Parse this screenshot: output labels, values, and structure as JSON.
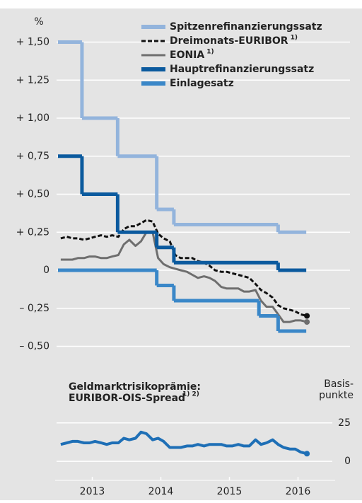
{
  "chart_data": [
    {
      "type": "line",
      "ylabel": "%",
      "xlim": [
        2013,
        2017
      ],
      "ylim": [
        -0.6,
        1.6
      ],
      "grid": true,
      "legend": "upper right",
      "yticks": [
        {
          "value": 1.5,
          "label": "+ 1,50"
        },
        {
          "value": 1.25,
          "label": "+ 1,25"
        },
        {
          "value": 1.0,
          "label": "+ 1,00"
        },
        {
          "value": 0.75,
          "label": "+ 0,75"
        },
        {
          "value": 0.5,
          "label": "+ 0,50"
        },
        {
          "value": 0.25,
          "label": "+ 0,25"
        },
        {
          "value": 0,
          "label": "0"
        },
        {
          "value": -0.25,
          "label": "– 0,25"
        },
        {
          "value": -0.5,
          "label": "– 0,50"
        }
      ],
      "series": [
        {
          "name": "Spitzenrefinanzierungssatz",
          "color": "#93b4dc",
          "step": true,
          "x": [
            2013.0,
            2013.35,
            2013.87,
            2014.44,
            2014.69,
            2016.21,
            2016.62
          ],
          "values": [
            1.5,
            1.0,
            0.75,
            0.4,
            0.3,
            0.25,
            0.25
          ]
        },
        {
          "name": "Dreimonats-EURIBOR",
          "note": "1)",
          "color": "#111111",
          "dashed": true,
          "end_marker": true,
          "x": [
            2013.04,
            2013.13,
            2013.21,
            2013.29,
            2013.38,
            2013.46,
            2013.54,
            2013.63,
            2013.71,
            2013.79,
            2013.88,
            2013.96,
            2014.04,
            2014.13,
            2014.21,
            2014.29,
            2014.38,
            2014.46,
            2014.54,
            2014.63,
            2014.71,
            2014.79,
            2014.88,
            2014.96,
            2015.04,
            2015.13,
            2015.21,
            2015.29,
            2015.38,
            2015.46,
            2015.54,
            2015.63,
            2015.71,
            2015.79,
            2015.88,
            2015.96,
            2016.04,
            2016.13,
            2016.21,
            2016.29,
            2016.38,
            2016.46,
            2016.54,
            2016.63
          ],
          "values": [
            0.21,
            0.22,
            0.21,
            0.21,
            0.2,
            0.21,
            0.22,
            0.23,
            0.22,
            0.23,
            0.22,
            0.27,
            0.29,
            0.29,
            0.31,
            0.33,
            0.32,
            0.24,
            0.21,
            0.19,
            0.1,
            0.08,
            0.08,
            0.08,
            0.06,
            0.05,
            0.03,
            0.0,
            -0.01,
            -0.01,
            -0.02,
            -0.03,
            -0.04,
            -0.05,
            -0.09,
            -0.13,
            -0.15,
            -0.18,
            -0.23,
            -0.25,
            -0.26,
            -0.27,
            -0.29,
            -0.3
          ]
        },
        {
          "name": "EONIA",
          "note": "1)",
          "color": "#6e6e6e",
          "end_marker": true,
          "x": [
            2013.04,
            2013.13,
            2013.21,
            2013.29,
            2013.38,
            2013.46,
            2013.54,
            2013.63,
            2013.71,
            2013.79,
            2013.88,
            2013.96,
            2014.04,
            2014.13,
            2014.21,
            2014.29,
            2014.38,
            2014.46,
            2014.54,
            2014.63,
            2014.71,
            2014.79,
            2014.88,
            2014.96,
            2015.04,
            2015.13,
            2015.21,
            2015.29,
            2015.38,
            2015.46,
            2015.54,
            2015.63,
            2015.71,
            2015.79,
            2015.88,
            2015.96,
            2016.04,
            2016.13,
            2016.21,
            2016.29,
            2016.38,
            2016.46,
            2016.54,
            2016.63
          ],
          "values": [
            0.07,
            0.07,
            0.07,
            0.08,
            0.08,
            0.09,
            0.09,
            0.08,
            0.08,
            0.09,
            0.1,
            0.17,
            0.2,
            0.16,
            0.19,
            0.25,
            0.25,
            0.08,
            0.04,
            0.02,
            0.01,
            0.0,
            -0.01,
            -0.03,
            -0.05,
            -0.04,
            -0.05,
            -0.07,
            -0.11,
            -0.12,
            -0.12,
            -0.12,
            -0.14,
            -0.14,
            -0.13,
            -0.2,
            -0.24,
            -0.24,
            -0.29,
            -0.34,
            -0.34,
            -0.33,
            -0.33,
            -0.34
          ]
        },
        {
          "name": "Hauptrefinanzierungssatz",
          "color": "#0b5a9e",
          "step": true,
          "x": [
            2013.0,
            2013.35,
            2013.87,
            2014.44,
            2014.69,
            2016.21,
            2016.62
          ],
          "values": [
            0.75,
            0.5,
            0.25,
            0.15,
            0.05,
            0,
            0
          ]
        },
        {
          "name": "Einlagesatz",
          "color": "#3a87c8",
          "step": true,
          "x": [
            2013.0,
            2014.44,
            2014.69,
            2015.93,
            2016.21,
            2016.62
          ],
          "values": [
            0,
            -0.1,
            -0.2,
            -0.3,
            -0.4,
            -0.4
          ]
        }
      ]
    },
    {
      "type": "line",
      "title": [
        "Geldmarktrisikoprämie:",
        "EURIBOR-OIS-Spread"
      ],
      "title_note": "1) 2)",
      "ylabel": [
        "Basis-",
        "punkte"
      ],
      "xlim": [
        2013,
        2017
      ],
      "ylim": [
        -5,
        35
      ],
      "yticks": [
        0,
        25
      ],
      "grid": true,
      "xticks": [
        {
          "value": 2013.5,
          "label": "2013"
        },
        {
          "value": 2014.5,
          "label": "2014"
        },
        {
          "value": 2015.5,
          "label": "2015"
        },
        {
          "value": 2016.5,
          "label": "2016"
        }
      ],
      "series": [
        {
          "name": "EURIBOR-OIS-Spread",
          "color": "#1e6fb6",
          "end_marker": true,
          "x": [
            2013.04,
            2013.13,
            2013.21,
            2013.29,
            2013.38,
            2013.46,
            2013.54,
            2013.63,
            2013.71,
            2013.79,
            2013.88,
            2013.96,
            2014.04,
            2014.13,
            2014.21,
            2014.29,
            2014.38,
            2014.46,
            2014.54,
            2014.63,
            2014.71,
            2014.79,
            2014.88,
            2014.96,
            2015.04,
            2015.13,
            2015.21,
            2015.29,
            2015.38,
            2015.46,
            2015.54,
            2015.63,
            2015.71,
            2015.79,
            2015.88,
            2015.96,
            2016.04,
            2016.13,
            2016.21,
            2016.29,
            2016.38,
            2016.46,
            2016.54,
            2016.63
          ],
          "values": [
            11,
            12,
            13,
            13,
            12,
            12,
            13,
            12,
            11,
            12,
            12,
            15,
            14,
            15,
            19,
            18,
            14,
            15,
            13,
            9,
            9,
            9,
            10,
            10,
            11,
            10,
            11,
            11,
            11,
            10,
            10,
            11,
            10,
            10,
            14,
            11,
            12,
            14,
            11,
            9,
            8,
            8,
            6,
            5
          ]
        }
      ]
    }
  ]
}
